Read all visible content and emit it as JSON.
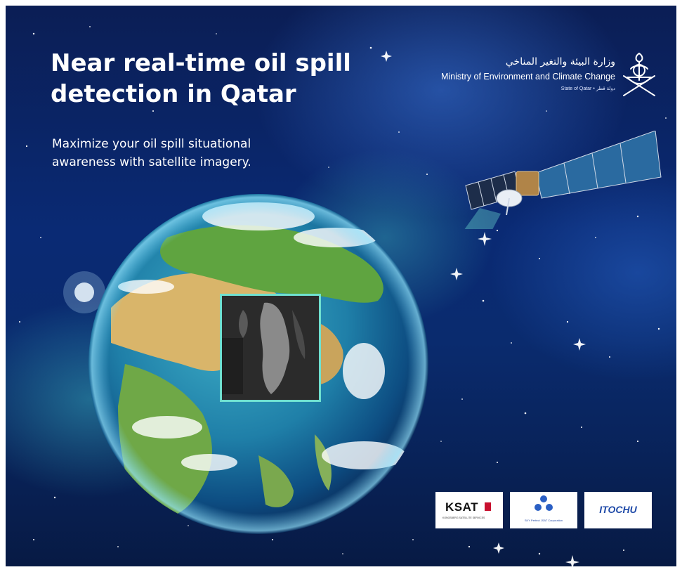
{
  "headline": "Near real-time oil spill detection in Qatar",
  "tagline": "Maximize your oil spill situational awareness with satellite imagery.",
  "ministry": {
    "name_ar": "وزارة البيئة والتغير المناخي",
    "name_en": "Ministry of Environment and Climate Change",
    "state_line": "State of Qatar • دولة قطر",
    "emblem": "qatar-emblem-icon"
  },
  "partners": [
    {
      "name": "KSAT",
      "subtitle": "KONGSBERG SATELLITE SERVICES"
    },
    {
      "name": "Sky Perfect JSAT",
      "subtitle": "SKY Perfect JSAT Corporation"
    },
    {
      "name": "ITOCHU"
    }
  ],
  "colors": {
    "space": "#0a2a74",
    "highlight": "#6fe0d0",
    "text": "#ffffff",
    "itochu_blue": "#1f4aa8",
    "ksat_red": "#c8102e"
  }
}
